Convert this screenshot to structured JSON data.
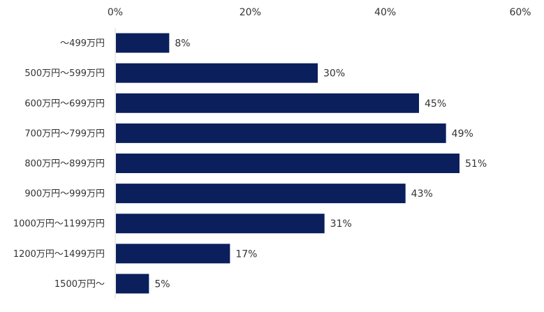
{
  "chart_data": {
    "type": "bar",
    "orientation": "horizontal",
    "title": "",
    "xlabel": "",
    "ylabel": "",
    "xlim": [
      0,
      60
    ],
    "x_ticks": [
      0,
      20,
      40,
      60
    ],
    "x_tick_labels": [
      "0%",
      "20%",
      "40%",
      "60%"
    ],
    "x_axis_position": "top",
    "grid": false,
    "legend": "none",
    "categories": [
      "～499万円",
      "500万円～599万円",
      "600万円～699万円",
      "700万円～799万円",
      "800万円～899万円",
      "900万円～999万円",
      "1000万円～1199万円",
      "1200万円～1499万円",
      "1500万円～"
    ],
    "values": [
      8,
      30,
      45,
      49,
      51,
      43,
      31,
      17,
      5
    ],
    "value_labels": [
      "8%",
      "30%",
      "45%",
      "49%",
      "51%",
      "43%",
      "31%",
      "17%",
      "5%"
    ],
    "bar_color": "#0a1f5c",
    "axis_color": "#d9d9d9"
  }
}
